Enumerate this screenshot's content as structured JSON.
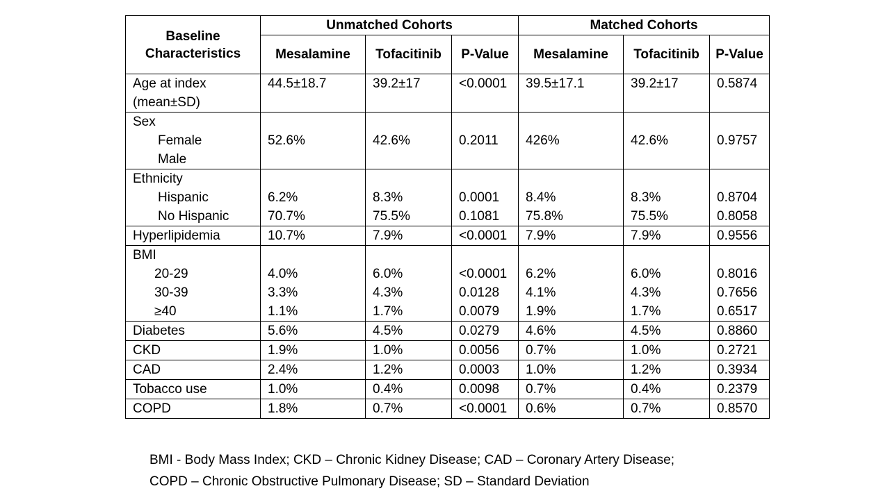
{
  "table": {
    "header": {
      "baseline_label": "Baseline Characteristics",
      "unmatched_label": "Unmatched Cohorts",
      "matched_label": "Matched Cohorts",
      "unmatched_cols": [
        "Mesalamine",
        "Tofacitinib",
        "P-Value"
      ],
      "matched_cols": [
        "Mesalamine",
        "Tofacitinib",
        "P-Value"
      ]
    },
    "rows": [
      {
        "lines": [
          "Age at index",
          "(mean±SD)"
        ],
        "values": [
          [
            "44.5±18.7",
            "39.2±17",
            "<0.0001",
            "39.5±17.1",
            "39.2±17",
            "0.5874"
          ]
        ]
      },
      {
        "lines": [
          "Sex",
          "Female",
          "Male"
        ],
        "values": [
          [],
          [
            "52.6%",
            "42.6%",
            "0.2011",
            "426%",
            "42.6%",
            "0.9757"
          ],
          []
        ]
      },
      {
        "lines": [
          "Ethnicity",
          "Hispanic",
          "No Hispanic"
        ],
        "values": [
          [],
          [
            "6.2%",
            "8.3%",
            "0.0001",
            "8.4%",
            "8.3%",
            "0.8704"
          ],
          [
            "70.7%",
            "75.5%",
            "0.1081",
            "75.8%",
            "75.5%",
            "0.8058"
          ]
        ]
      },
      {
        "lines": [
          "Hyperlipidemia"
        ],
        "values": [
          [
            "10.7%",
            "7.9%",
            "<0.0001",
            "7.9%",
            "7.9%",
            "0.9556"
          ]
        ]
      },
      {
        "lines": [
          "BMI",
          "20-29",
          "30-39",
          "≥40"
        ],
        "values": [
          [],
          [
            "4.0%",
            "6.0%",
            "<0.0001",
            "6.2%",
            "6.0%",
            "0.8016"
          ],
          [
            "3.3%",
            "4.3%",
            "0.0128",
            "4.1%",
            "4.3%",
            "0.7656"
          ],
          [
            "1.1%",
            "1.7%",
            "0.0079",
            "1.9%",
            "1.7%",
            "0.6517"
          ]
        ]
      },
      {
        "lines": [
          "Diabetes"
        ],
        "values": [
          [
            "5.6%",
            "4.5%",
            "0.0279",
            "4.6%",
            "4.5%",
            "0.8860"
          ]
        ]
      },
      {
        "lines": [
          "CKD"
        ],
        "values": [
          [
            "1.9%",
            "1.0%",
            "0.0056",
            "0.7%",
            "1.0%",
            "0.2721"
          ]
        ]
      },
      {
        "lines": [
          "CAD"
        ],
        "values": [
          [
            "2.4%",
            "1.2%",
            "0.0003",
            "1.0%",
            "1.2%",
            "0.3934"
          ]
        ]
      },
      {
        "lines": [
          "Tobacco use"
        ],
        "values": [
          [
            "1.0%",
            "0.4%",
            "0.0098",
            "0.7%",
            "0.4%",
            "0.2379"
          ]
        ]
      },
      {
        "lines": [
          "COPD"
        ],
        "values": [
          [
            "1.8%",
            "0.7%",
            "<0.0001",
            "0.6%",
            "0.7%",
            "0.8570"
          ]
        ]
      }
    ]
  },
  "footnote": {
    "line1": "BMI - Body Mass Index; CKD – Chronic Kidney Disease; CAD – Coronary Artery Disease;",
    "line2": "COPD – Chronic Obstructive Pulmonary Disease; SD – Standard Deviation"
  }
}
